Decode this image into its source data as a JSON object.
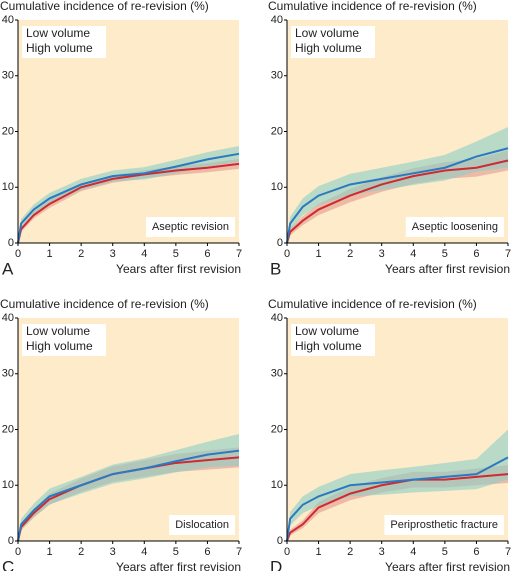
{
  "chart_data": [
    {
      "type": "line",
      "title": "Cumulative incidence of re-revision (%)",
      "panel": "A",
      "annotation": "Aseptic revision",
      "xlabel": "Years after first revision",
      "x": [
        0,
        0.1,
        0.5,
        1,
        2,
        3,
        4,
        5,
        6,
        7
      ],
      "xlim": [
        0,
        7
      ],
      "ylim": [
        0,
        40
      ],
      "xticks": [
        0,
        1,
        2,
        3,
        4,
        5,
        6,
        7
      ],
      "yticks": [
        0,
        10,
        20,
        30,
        40
      ],
      "series": [
        {
          "name": "Low volume",
          "color": "#cf2a30",
          "band_color": "#e39a92",
          "values": [
            0,
            2.5,
            5,
            7,
            10,
            11.5,
            12.3,
            13,
            13.5,
            14.2
          ],
          "lower": [
            0,
            2,
            4.4,
            6.3,
            9.3,
            10.8,
            11.6,
            12.2,
            12.7,
            13.3
          ],
          "upper": [
            0,
            3,
            5.6,
            7.7,
            10.7,
            12.2,
            13,
            13.8,
            14.3,
            15.1
          ]
        },
        {
          "name": "High volume",
          "color": "#2b79c0",
          "band_color": "#8ccfc6",
          "values": [
            0,
            3.5,
            6,
            8,
            10.5,
            12,
            12.5,
            13.7,
            15,
            16
          ],
          "lower": [
            0,
            2.7,
            5.1,
            7,
            9.5,
            11,
            11.4,
            12.5,
            13.7,
            14.6
          ],
          "upper": [
            0,
            4.3,
            6.9,
            9,
            11.5,
            13,
            13.6,
            14.9,
            16.3,
            17.4
          ]
        }
      ]
    },
    {
      "type": "line",
      "title": "Cumulative incidence of re-revision (%)",
      "panel": "B",
      "annotation": "Aseptic loosening",
      "xlabel": "Years after first revision",
      "x": [
        0,
        0.1,
        0.5,
        1,
        2,
        3,
        4,
        5,
        6,
        7
      ],
      "xlim": [
        0,
        7
      ],
      "ylim": [
        0,
        40
      ],
      "xticks": [
        0,
        1,
        2,
        3,
        4,
        5,
        6,
        7
      ],
      "yticks": [
        0,
        10,
        20,
        30,
        40
      ],
      "series": [
        {
          "name": "Low volume",
          "color": "#cf2a30",
          "band_color": "#e39a92",
          "values": [
            0,
            2,
            4,
            6,
            8.5,
            10.5,
            12,
            13,
            13.5,
            14.8
          ],
          "lower": [
            0,
            1.4,
            3.2,
            5,
            7.3,
            9.2,
            10.6,
            11.5,
            11.9,
            13
          ],
          "upper": [
            0,
            2.6,
            4.8,
            7,
            9.7,
            11.8,
            13.4,
            14.5,
            15.1,
            16.6
          ]
        },
        {
          "name": "High volume",
          "color": "#2b79c0",
          "band_color": "#8ccfc6",
          "values": [
            0,
            3.5,
            6.5,
            8.5,
            10.5,
            11.5,
            12.5,
            13.5,
            15.5,
            17
          ],
          "lower": [
            0,
            2.3,
            5,
            6.8,
            8.6,
            9.5,
            10.4,
            11.2,
            12.8,
            13.5
          ],
          "upper": [
            0,
            4.7,
            8,
            10.2,
            12.4,
            13.5,
            14.6,
            15.8,
            18.2,
            20.8
          ]
        }
      ]
    },
    {
      "type": "line",
      "title": "Cumulative incidence of re-revision (%)",
      "panel": "C",
      "annotation": "Dislocation",
      "xlabel": "Years after first revision",
      "x": [
        0,
        0.1,
        0.5,
        1,
        2,
        3,
        4,
        5,
        6,
        7
      ],
      "xlim": [
        0,
        7
      ],
      "ylim": [
        0,
        40
      ],
      "xticks": [
        0,
        1,
        2,
        3,
        4,
        5,
        6,
        7
      ],
      "yticks": [
        0,
        10,
        20,
        30,
        40
      ],
      "series": [
        {
          "name": "Low volume",
          "color": "#cf2a30",
          "band_color": "#e39a92",
          "values": [
            0,
            2.5,
            5,
            7.5,
            10,
            12,
            13,
            14,
            14.5,
            15
          ],
          "lower": [
            0,
            1.9,
            4.2,
            6.5,
            8.8,
            10.6,
            11.5,
            12.4,
            12.8,
            13.2
          ],
          "upper": [
            0,
            3.1,
            5.8,
            8.5,
            11.2,
            13.4,
            14.5,
            15.6,
            16.2,
            16.8
          ]
        },
        {
          "name": "High volume",
          "color": "#2b79c0",
          "band_color": "#8ccfc6",
          "values": [
            0,
            3,
            5.5,
            8,
            10,
            12,
            13,
            14.3,
            15.5,
            16.2
          ],
          "lower": [
            0,
            2,
            4.3,
            6.6,
            8.5,
            10.3,
            11.2,
            12.3,
            13.2,
            13.5
          ],
          "upper": [
            0,
            4,
            6.7,
            9.4,
            11.5,
            13.7,
            14.8,
            16.3,
            17.8,
            19.2
          ]
        }
      ]
    },
    {
      "type": "line",
      "title": "Cumulative incidence of re-revision (%)",
      "panel": "D",
      "annotation": "Periprosthetic fracture",
      "xlabel": "Years after first revision",
      "x": [
        0,
        0.1,
        0.5,
        1,
        2,
        3,
        4,
        5,
        6,
        7
      ],
      "xlim": [
        0,
        7
      ],
      "ylim": [
        0,
        40
      ],
      "xticks": [
        0,
        1,
        2,
        3,
        4,
        5,
        6,
        7
      ],
      "yticks": [
        0,
        10,
        20,
        30,
        40
      ],
      "series": [
        {
          "name": "Low volume",
          "color": "#cf2a30",
          "band_color": "#e39a92",
          "values": [
            0,
            1.5,
            3,
            6,
            8.5,
            10,
            11,
            11,
            11.5,
            12
          ],
          "lower": [
            0,
            1,
            2.3,
            5,
            7.3,
            8.7,
            9.6,
            9.6,
            10,
            10.4
          ],
          "upper": [
            0,
            2,
            3.7,
            7,
            9.7,
            11.3,
            12.4,
            12.4,
            13,
            13.6
          ]
        },
        {
          "name": "High volume",
          "color": "#2b79c0",
          "band_color": "#8ccfc6",
          "values": [
            0,
            4,
            6.5,
            8,
            10,
            10.5,
            11,
            11.5,
            12,
            15
          ],
          "lower": [
            0,
            2.8,
            5,
            6.3,
            8,
            8.3,
            8.7,
            9,
            9.3,
            11
          ],
          "upper": [
            0,
            5.2,
            8,
            9.7,
            12,
            12.7,
            13.3,
            14,
            14.7,
            20
          ]
        }
      ]
    }
  ]
}
